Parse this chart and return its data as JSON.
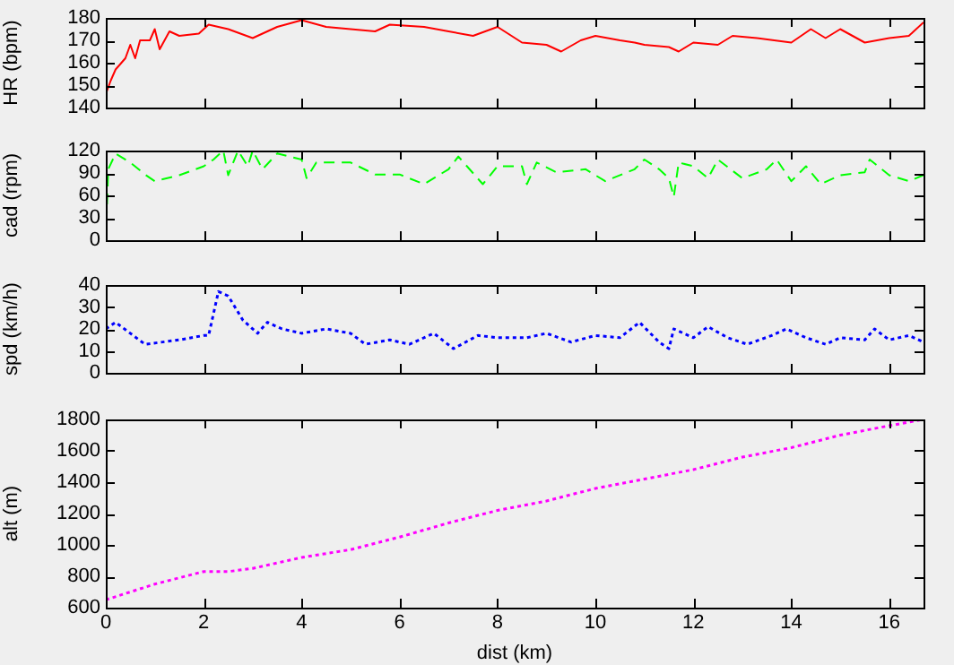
{
  "chart_data": [
    {
      "type": "line",
      "ylabel": "HR (bpm)",
      "xlim": [
        0,
        16.7
      ],
      "xticks": [
        0,
        2,
        4,
        6,
        8,
        10,
        12,
        14,
        16
      ],
      "ylim": [
        140,
        180
      ],
      "yticks": [
        140,
        150,
        160,
        170,
        180
      ],
      "tick_labels": "y",
      "grid": false,
      "legend": false,
      "line_style": "solid",
      "marker": "none",
      "x": [
        0,
        0.1,
        0.2,
        0.4,
        0.5,
        0.6,
        0.7,
        0.9,
        1.0,
        1.1,
        1.3,
        1.5,
        1.9,
        2.1,
        2.5,
        3.0,
        3.5,
        4.0,
        4.5,
        5.0,
        5.5,
        5.8,
        6.5,
        7.0,
        7.5,
        8.0,
        8.5,
        9.0,
        9.3,
        9.7,
        10.0,
        10.5,
        10.8,
        11.0,
        11.5,
        11.7,
        12.0,
        12.5,
        12.8,
        13.3,
        14.0,
        14.4,
        14.7,
        15.0,
        15.5,
        16.0,
        16.4,
        16.7
      ],
      "series": [
        {
          "color": "#ff0000",
          "values": [
            146,
            152,
            157,
            162,
            168,
            162,
            170,
            170,
            175,
            166,
            174,
            172,
            173,
            177,
            175,
            171,
            176,
            179,
            176,
            175,
            174,
            177,
            176,
            174,
            172,
            176,
            169,
            168,
            165,
            170,
            172,
            170,
            169,
            168,
            167,
            165,
            169,
            168,
            172,
            171,
            169,
            175,
            171,
            175,
            169,
            171,
            172,
            178
          ]
        }
      ]
    },
    {
      "type": "line",
      "ylabel": "cad (rpm)",
      "xlim": [
        0,
        16.7
      ],
      "xticks": [
        0,
        2,
        4,
        6,
        8,
        10,
        12,
        14,
        16
      ],
      "ylim": [
        0,
        120
      ],
      "yticks": [
        0,
        30,
        60,
        90,
        120
      ],
      "tick_labels": "y",
      "grid": false,
      "legend": false,
      "line_style": "dashed",
      "marker": "none",
      "x": [
        0,
        0.05,
        0.2,
        0.5,
        0.8,
        1.0,
        1.5,
        2.0,
        2.2,
        2.4,
        2.5,
        2.7,
        2.9,
        3.0,
        3.2,
        3.5,
        4.0,
        4.1,
        4.3,
        5.0,
        5.5,
        6.0,
        6.5,
        7.0,
        7.2,
        7.7,
        8.0,
        8.5,
        8.6,
        8.8,
        9.2,
        9.8,
        10.2,
        10.8,
        11.0,
        11.3,
        11.5,
        11.6,
        11.7,
        12.0,
        12.3,
        12.5,
        13.0,
        13.5,
        13.7,
        14.0,
        14.3,
        14.6,
        15.0,
        15.5,
        15.6,
        16.0,
        16.4,
        16.7
      ],
      "series": [
        {
          "color": "#00ff00",
          "values": [
            0,
            95,
            116,
            104,
            88,
            79,
            87,
            99,
            108,
            120,
            87,
            120,
            99,
            120,
            95,
            116,
            108,
            83,
            104,
            104,
            88,
            88,
            75,
            95,
            112,
            75,
            99,
            99,
            75,
            104,
            91,
            95,
            79,
            95,
            108,
            95,
            83,
            58,
            104,
            99,
            83,
            108,
            83,
            95,
            108,
            79,
            99,
            75,
            87,
            91,
            108,
            87,
            79,
            87
          ]
        }
      ]
    },
    {
      "type": "line",
      "ylabel": "spd (km/h)",
      "xlim": [
        0,
        16.7
      ],
      "xticks": [
        0,
        2,
        4,
        6,
        8,
        10,
        12,
        14,
        16
      ],
      "ylim": [
        0,
        40
      ],
      "yticks": [
        0,
        10,
        20,
        30,
        40
      ],
      "tick_labels": "y",
      "grid": false,
      "legend": false,
      "line_style": "dotted",
      "marker": "none",
      "x": [
        0,
        0.2,
        0.5,
        0.8,
        1.5,
        2.0,
        2.1,
        2.3,
        2.5,
        2.8,
        3.1,
        3.3,
        3.6,
        4.0,
        4.5,
        5.0,
        5.3,
        5.8,
        6.2,
        6.7,
        7.1,
        7.6,
        8.0,
        8.6,
        9.0,
        9.5,
        10.0,
        10.5,
        10.9,
        11.3,
        11.5,
        11.6,
        12.0,
        12.3,
        12.7,
        13.1,
        13.6,
        13.9,
        14.3,
        14.7,
        15.0,
        15.5,
        15.7,
        16.0,
        16.4,
        16.7
      ],
      "series": [
        {
          "color": "#0000ff",
          "values": [
            20,
            23,
            18,
            13,
            15,
            17,
            17,
            37,
            35,
            24,
            18,
            23,
            20,
            18,
            20,
            18,
            13,
            15,
            13,
            18,
            11,
            17,
            16,
            16,
            18,
            14,
            17,
            16,
            23,
            14,
            11,
            20,
            16,
            21,
            16,
            13,
            17,
            20,
            16,
            13,
            16,
            15,
            20,
            15,
            17,
            14
          ]
        }
      ]
    },
    {
      "type": "line",
      "xlabel": "dist (km)",
      "ylabel": "alt (m)",
      "xlim": [
        0,
        16.7
      ],
      "xticks": [
        0,
        2,
        4,
        6,
        8,
        10,
        12,
        14,
        16
      ],
      "ylim": [
        600,
        1800
      ],
      "yticks": [
        600,
        800,
        1000,
        1200,
        1400,
        1600,
        1800
      ],
      "grid": false,
      "legend": false,
      "line_style": "dotted",
      "marker": "none",
      "x": [
        0,
        1,
        2,
        2.5,
        3,
        4,
        5,
        6,
        7,
        8,
        9,
        10,
        11,
        12,
        13,
        14,
        15,
        16,
        16.7
      ],
      "series": [
        {
          "color": "#ff00ff",
          "values": [
            650,
            750,
            830,
            830,
            850,
            920,
            970,
            1050,
            1140,
            1220,
            1280,
            1360,
            1420,
            1480,
            1560,
            1620,
            1700,
            1760,
            1800
          ]
        }
      ]
    }
  ]
}
